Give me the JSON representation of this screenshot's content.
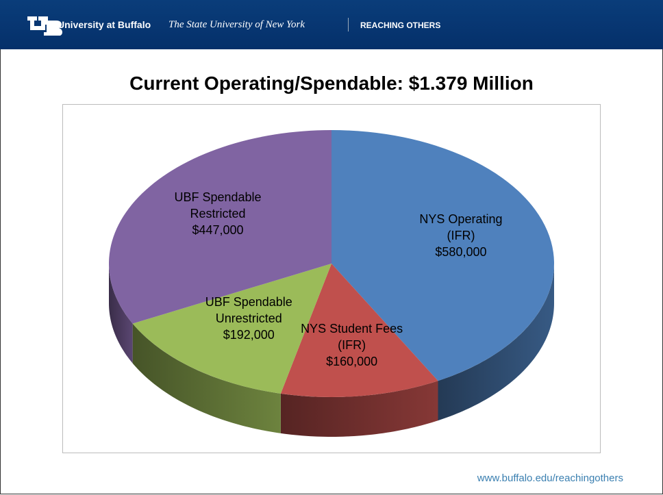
{
  "header": {
    "university": "University at Buffalo",
    "system": "The State University of New York",
    "tagline": "REACHING OTHERS"
  },
  "footer": {
    "url": "www.buffalo.edu/reachingothers"
  },
  "chart_data": {
    "type": "pie",
    "title": "Current Operating/Spendable:  $1.379 Million",
    "categories": [
      "NYS Operating (IFR)",
      "NYS Student Fees (IFR)",
      "UBF Spendable Unrestricted",
      "UBF Spendable Restricted"
    ],
    "values": [
      580000,
      160000,
      192000,
      447000
    ],
    "value_labels": [
      "$580,000",
      "$160,000",
      "$192,000",
      "$447,000"
    ],
    "colors": [
      "#4f81bd",
      "#c0504d",
      "#9bbb59",
      "#8064a2"
    ]
  }
}
